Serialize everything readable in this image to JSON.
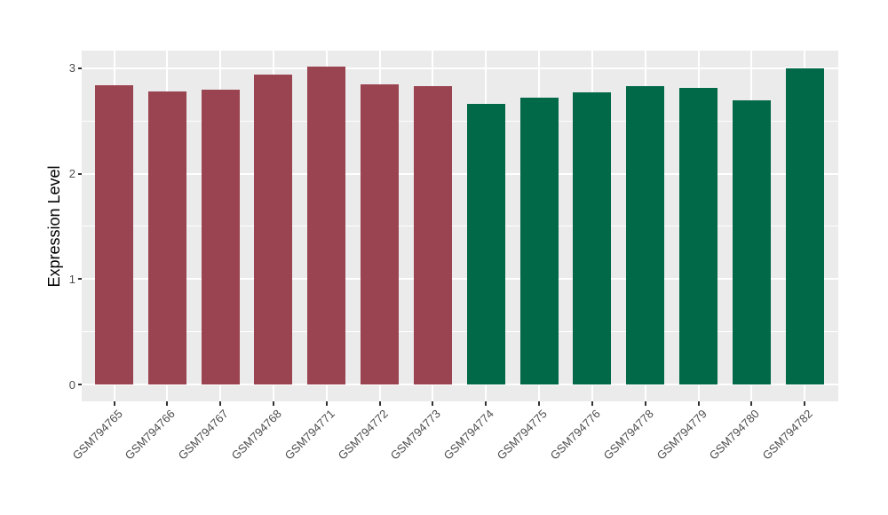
{
  "figure": {
    "background_color": "#FFFFFF",
    "panel_background_color": "#EBEBEB",
    "gridline_color": "#FFFFFF",
    "tick_mark_color": "#333333",
    "tick_label_color": "#4D4D4D",
    "axis_title_color": "#000000"
  },
  "chart_data": {
    "type": "bar",
    "title": "",
    "xlabel": "",
    "ylabel": "Expression Level",
    "categories": [
      "GSM794765",
      "GSM794766",
      "GSM794767",
      "GSM794768",
      "GSM794771",
      "GSM794772",
      "GSM794773",
      "GSM794774",
      "GSM794775",
      "GSM794776",
      "GSM794778",
      "GSM794779",
      "GSM794780",
      "GSM794782"
    ],
    "values": [
      2.84,
      2.78,
      2.8,
      2.94,
      3.02,
      2.85,
      2.83,
      2.66,
      2.72,
      2.77,
      2.83,
      2.81,
      2.7,
      3.0
    ],
    "bar_colors": [
      "#9B4451",
      "#9B4451",
      "#9B4451",
      "#9B4451",
      "#9B4451",
      "#9B4451",
      "#9B4451",
      "#016948",
      "#016948",
      "#016948",
      "#016948",
      "#016948",
      "#016948",
      "#016948"
    ],
    "group_colors": {
      "left_group": "#9B4451",
      "right_group": "#016948"
    },
    "yticks_major": [
      0,
      1,
      2,
      3
    ],
    "yticks_minor": [
      0.5,
      1.5,
      2.5
    ],
    "ylim": [
      0,
      3.19
    ],
    "grid": "on",
    "legend": "none",
    "bar_orientation": "vertical",
    "x_label_rotation_deg": 45
  }
}
